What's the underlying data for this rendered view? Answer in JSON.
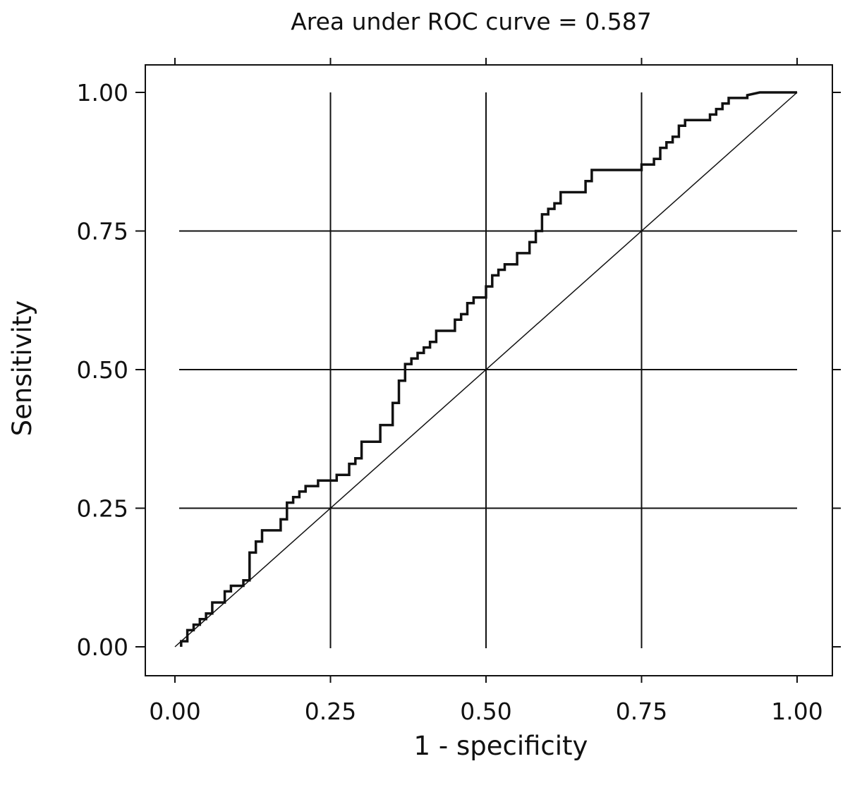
{
  "chart_data": {
    "type": "line",
    "title": "Area under ROC curve = 0.587",
    "xlabel": "1 - specificity",
    "ylabel": "Sensitivity",
    "xlim": [
      0,
      1
    ],
    "ylim": [
      0,
      1
    ],
    "xticks": [
      "0.00",
      "0.25",
      "0.50",
      "0.75",
      "1.00"
    ],
    "yticks": [
      "0.00",
      "0.25",
      "0.50",
      "0.75",
      "1.00"
    ],
    "grid": true,
    "series": [
      {
        "x": [
          0.01,
          0.01,
          0.02,
          0.02,
          0.03,
          0.03,
          0.04,
          0.04,
          0.05,
          0.05,
          0.06,
          0.06,
          0.07,
          0.07,
          0.08,
          0.08,
          0.09,
          0.09,
          0.11,
          0.11,
          0.12,
          0.12,
          0.13,
          0.13,
          0.14,
          0.14,
          0.17,
          0.17,
          0.18,
          0.18,
          0.19,
          0.19,
          0.2,
          0.2,
          0.21,
          0.21,
          0.23,
          0.23,
          0.26,
          0.26,
          0.28,
          0.28,
          0.29,
          0.29,
          0.3,
          0.3,
          0.31,
          0.31,
          0.33,
          0.33,
          0.35,
          0.35,
          0.36,
          0.36,
          0.37,
          0.37,
          0.38,
          0.38,
          0.39,
          0.39,
          0.4,
          0.4,
          0.41,
          0.41,
          0.42,
          0.42,
          0.45,
          0.45,
          0.46,
          0.46,
          0.47,
          0.47,
          0.48,
          0.48,
          0.5,
          0.5,
          0.51,
          0.51,
          0.52,
          0.52,
          0.53,
          0.53,
          0.55,
          0.55,
          0.57,
          0.57,
          0.58,
          0.58,
          0.59,
          0.59,
          0.6,
          0.6,
          0.61,
          0.61,
          0.62,
          0.62,
          0.64,
          0.64,
          0.66,
          0.66,
          0.67,
          0.67,
          0.75,
          0.75,
          0.77,
          0.77,
          0.78,
          0.78,
          0.79,
          0.79,
          0.8,
          0.8,
          0.81,
          0.81,
          0.82,
          0.82,
          0.83,
          0.83,
          0.86,
          0.86,
          0.87,
          0.87,
          0.88,
          0.88,
          0.89,
          0.89,
          0.92,
          0.92,
          0.94,
          1.0
        ],
        "y": [
          0.0,
          0.01,
          0.01,
          0.03,
          0.03,
          0.04,
          0.04,
          0.05,
          0.05,
          0.06,
          0.06,
          0.08,
          0.08,
          0.08,
          0.08,
          0.1,
          0.1,
          0.11,
          0.11,
          0.12,
          0.12,
          0.17,
          0.17,
          0.19,
          0.19,
          0.21,
          0.21,
          0.23,
          0.23,
          0.26,
          0.26,
          0.27,
          0.27,
          0.28,
          0.28,
          0.29,
          0.29,
          0.3,
          0.3,
          0.31,
          0.31,
          0.33,
          0.33,
          0.34,
          0.34,
          0.37,
          0.37,
          0.37,
          0.37,
          0.4,
          0.4,
          0.44,
          0.44,
          0.48,
          0.48,
          0.51,
          0.51,
          0.52,
          0.52,
          0.53,
          0.53,
          0.54,
          0.54,
          0.55,
          0.55,
          0.57,
          0.57,
          0.59,
          0.59,
          0.6,
          0.6,
          0.62,
          0.62,
          0.63,
          0.63,
          0.65,
          0.65,
          0.67,
          0.67,
          0.68,
          0.68,
          0.69,
          0.69,
          0.71,
          0.71,
          0.73,
          0.73,
          0.75,
          0.75,
          0.78,
          0.78,
          0.79,
          0.79,
          0.8,
          0.8,
          0.82,
          0.82,
          0.82,
          0.82,
          0.84,
          0.84,
          0.86,
          0.86,
          0.87,
          0.87,
          0.88,
          0.88,
          0.9,
          0.9,
          0.91,
          0.91,
          0.92,
          0.92,
          0.94,
          0.94,
          0.95,
          0.95,
          0.95,
          0.95,
          0.96,
          0.96,
          0.97,
          0.97,
          0.98,
          0.98,
          0.99,
          0.99,
          0.995,
          1.0,
          1.0
        ]
      },
      {
        "x": [
          0,
          1
        ],
        "y": [
          0,
          1
        ]
      }
    ]
  }
}
